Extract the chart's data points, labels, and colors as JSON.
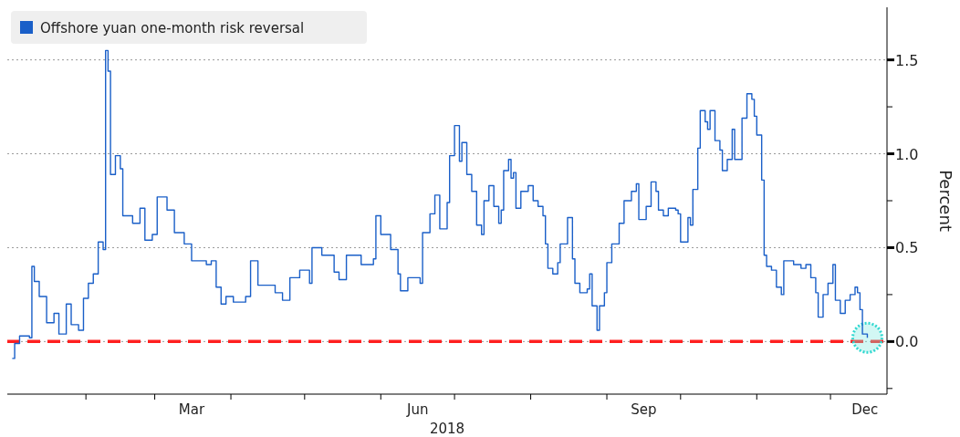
{
  "chart_data": {
    "type": "step",
    "xlabel": "2018",
    "ylabel": "Percent",
    "legend": "top left",
    "grid": "y",
    "marker": "none",
    "line_style": "solid",
    "xlim": [
      "2017-12-31",
      "2018-12-24"
    ],
    "xticks": [
      {
        "value": "2018-02-01",
        "label": null
      },
      {
        "value": "2018-03-01",
        "label": null
      },
      {
        "value": "2018-03-16",
        "label": "Mar"
      },
      {
        "value": "2018-04-01",
        "label": null
      },
      {
        "value": "2018-05-01",
        "label": null
      },
      {
        "value": "2018-06-01",
        "label": null
      },
      {
        "value": "2018-06-16",
        "label": "Jun"
      },
      {
        "value": "2018-07-01",
        "label": null
      },
      {
        "value": "2018-08-01",
        "label": null
      },
      {
        "value": "2018-09-01",
        "label": null
      },
      {
        "value": "2018-09-16",
        "label": "Sep"
      },
      {
        "value": "2018-10-01",
        "label": null
      },
      {
        "value": "2018-11-01",
        "label": null
      },
      {
        "value": "2018-12-01",
        "label": null
      },
      {
        "value": "2018-12-15",
        "label": "Dec"
      }
    ],
    "ylim": [
      -0.28,
      1.78
    ],
    "yticks": [
      {
        "value": -0.25,
        "label": null
      },
      {
        "value": 0,
        "label": "0.0"
      },
      {
        "value": 0.25,
        "label": null
      },
      0.5,
      {
        "value": 0.75,
        "label": null
      },
      {
        "value": 1,
        "label": "1.0"
      },
      {
        "value": 1.25,
        "label": null
      },
      1.5
    ],
    "ref_lines": [
      {
        "axis": "y",
        "value": 0,
        "label": null,
        "color": "#ff2020",
        "line_style": "dashed"
      }
    ],
    "series": [
      {
        "name": "Offshore yuan one-month risk reversal",
        "color": "#1a5fc8",
        "x": [
          "2018-01-02",
          "2018-01-03",
          "2018-01-05",
          "2018-01-09",
          "2018-01-10",
          "2018-01-11",
          "2018-01-13",
          "2018-01-16",
          "2018-01-19",
          "2018-01-21",
          "2018-01-24",
          "2018-01-26",
          "2018-01-29",
          "2018-01-31",
          "2018-02-02",
          "2018-02-04",
          "2018-02-06",
          "2018-02-08",
          "2018-02-09",
          "2018-02-10",
          "2018-02-11",
          "2018-02-13",
          "2018-02-15",
          "2018-02-16",
          "2018-02-20",
          "2018-02-23",
          "2018-02-25",
          "2018-02-28",
          "2018-03-02",
          "2018-03-06",
          "2018-03-09",
          "2018-03-13",
          "2018-03-16",
          "2018-03-22",
          "2018-03-24",
          "2018-03-26",
          "2018-03-28",
          "2018-03-30",
          "2018-04-02",
          "2018-04-07",
          "2018-04-09",
          "2018-04-12",
          "2018-04-19",
          "2018-04-22",
          "2018-04-25",
          "2018-04-29",
          "2018-05-03",
          "2018-05-04",
          "2018-05-08",
          "2018-05-13",
          "2018-05-15",
          "2018-05-18",
          "2018-05-24",
          "2018-05-29",
          "2018-05-30",
          "2018-06-01",
          "2018-06-05",
          "2018-06-08",
          "2018-06-09",
          "2018-06-12",
          "2018-06-17",
          "2018-06-18",
          "2018-06-21",
          "2018-06-23",
          "2018-06-25",
          "2018-06-28",
          "2018-06-29",
          "2018-07-01",
          "2018-07-03",
          "2018-07-04",
          "2018-07-06",
          "2018-07-08",
          "2018-07-10",
          "2018-07-12",
          "2018-07-13",
          "2018-07-15",
          "2018-07-17",
          "2018-07-19",
          "2018-07-20",
          "2018-07-21",
          "2018-07-23",
          "2018-07-24",
          "2018-07-25",
          "2018-07-26",
          "2018-07-28",
          "2018-07-31",
          "2018-08-02",
          "2018-08-04",
          "2018-08-06",
          "2018-08-07",
          "2018-08-08",
          "2018-08-10",
          "2018-08-12",
          "2018-08-13",
          "2018-08-16",
          "2018-08-18",
          "2018-08-19",
          "2018-08-21",
          "2018-08-24",
          "2018-08-25",
          "2018-08-26",
          "2018-08-28",
          "2018-08-29",
          "2018-08-31",
          "2018-09-01",
          "2018-09-03",
          "2018-09-06",
          "2018-09-08",
          "2018-09-11",
          "2018-09-13",
          "2018-09-14",
          "2018-09-17",
          "2018-09-19",
          "2018-09-21",
          "2018-09-22",
          "2018-09-24",
          "2018-09-26",
          "2018-09-29",
          "2018-09-30",
          "2018-10-01",
          "2018-10-04",
          "2018-10-05",
          "2018-10-06",
          "2018-10-08",
          "2018-10-09",
          "2018-10-11",
          "2018-10-12",
          "2018-10-13",
          "2018-10-15",
          "2018-10-17",
          "2018-10-18",
          "2018-10-20",
          "2018-10-22",
          "2018-10-23",
          "2018-10-25",
          "2018-10-26",
          "2018-10-28",
          "2018-10-30",
          "2018-10-31",
          "2018-11-01",
          "2018-11-03",
          "2018-11-04",
          "2018-11-05",
          "2018-11-07",
          "2018-11-09",
          "2018-11-11",
          "2018-11-12",
          "2018-11-16",
          "2018-11-19",
          "2018-11-21",
          "2018-11-23",
          "2018-11-25",
          "2018-11-26",
          "2018-11-28",
          "2018-11-30",
          "2018-12-02",
          "2018-12-03",
          "2018-12-05",
          "2018-12-07",
          "2018-12-09",
          "2018-12-11",
          "2018-12-12",
          "2018-12-13",
          "2018-12-14",
          "2018-12-16"
        ],
        "values": [
          -0.09,
          -0.01,
          0.03,
          0.02,
          0.4,
          0.32,
          0.24,
          0.1,
          0.15,
          0.04,
          0.2,
          0.09,
          0.06,
          0.23,
          0.31,
          0.36,
          0.53,
          0.49,
          1.55,
          1.44,
          0.89,
          0.99,
          0.92,
          0.67,
          0.63,
          0.71,
          0.54,
          0.57,
          0.77,
          0.7,
          0.58,
          0.52,
          0.43,
          0.41,
          0.43,
          0.29,
          0.2,
          0.24,
          0.21,
          0.24,
          0.43,
          0.3,
          0.26,
          0.22,
          0.34,
          0.38,
          0.31,
          0.5,
          0.46,
          0.37,
          0.33,
          0.46,
          0.41,
          0.44,
          0.67,
          0.57,
          0.49,
          0.36,
          0.27,
          0.34,
          0.31,
          0.58,
          0.68,
          0.78,
          0.6,
          0.74,
          0.99,
          1.15,
          0.96,
          1.06,
          0.89,
          0.8,
          0.62,
          0.57,
          0.75,
          0.83,
          0.72,
          0.63,
          0.7,
          0.91,
          0.97,
          0.87,
          0.9,
          0.71,
          0.8,
          0.83,
          0.75,
          0.72,
          0.67,
          0.52,
          0.39,
          0.36,
          0.42,
          0.52,
          0.66,
          0.44,
          0.31,
          0.26,
          0.28,
          0.36,
          0.19,
          0.06,
          0.19,
          0.26,
          0.42,
          0.52,
          0.63,
          0.75,
          0.8,
          0.84,
          0.65,
          0.72,
          0.85,
          0.8,
          0.7,
          0.67,
          0.71,
          0.7,
          0.68,
          0.53,
          0.66,
          0.62,
          0.81,
          1.03,
          1.23,
          1.17,
          1.13,
          1.23,
          1.07,
          1.02,
          0.91,
          0.97,
          1.13,
          0.97,
          0.97,
          1.19,
          1.32,
          1.29,
          1.2,
          1.1,
          0.86,
          0.46,
          0.4,
          0.38,
          0.29,
          0.25,
          0.43,
          0.41,
          0.39,
          0.41,
          0.34,
          0.26,
          0.13,
          0.25,
          0.31,
          0.41,
          0.22,
          0.15,
          0.22,
          0.25,
          0.29,
          0.26,
          0.17,
          0.04,
          0.02
        ]
      }
    ]
  }
}
